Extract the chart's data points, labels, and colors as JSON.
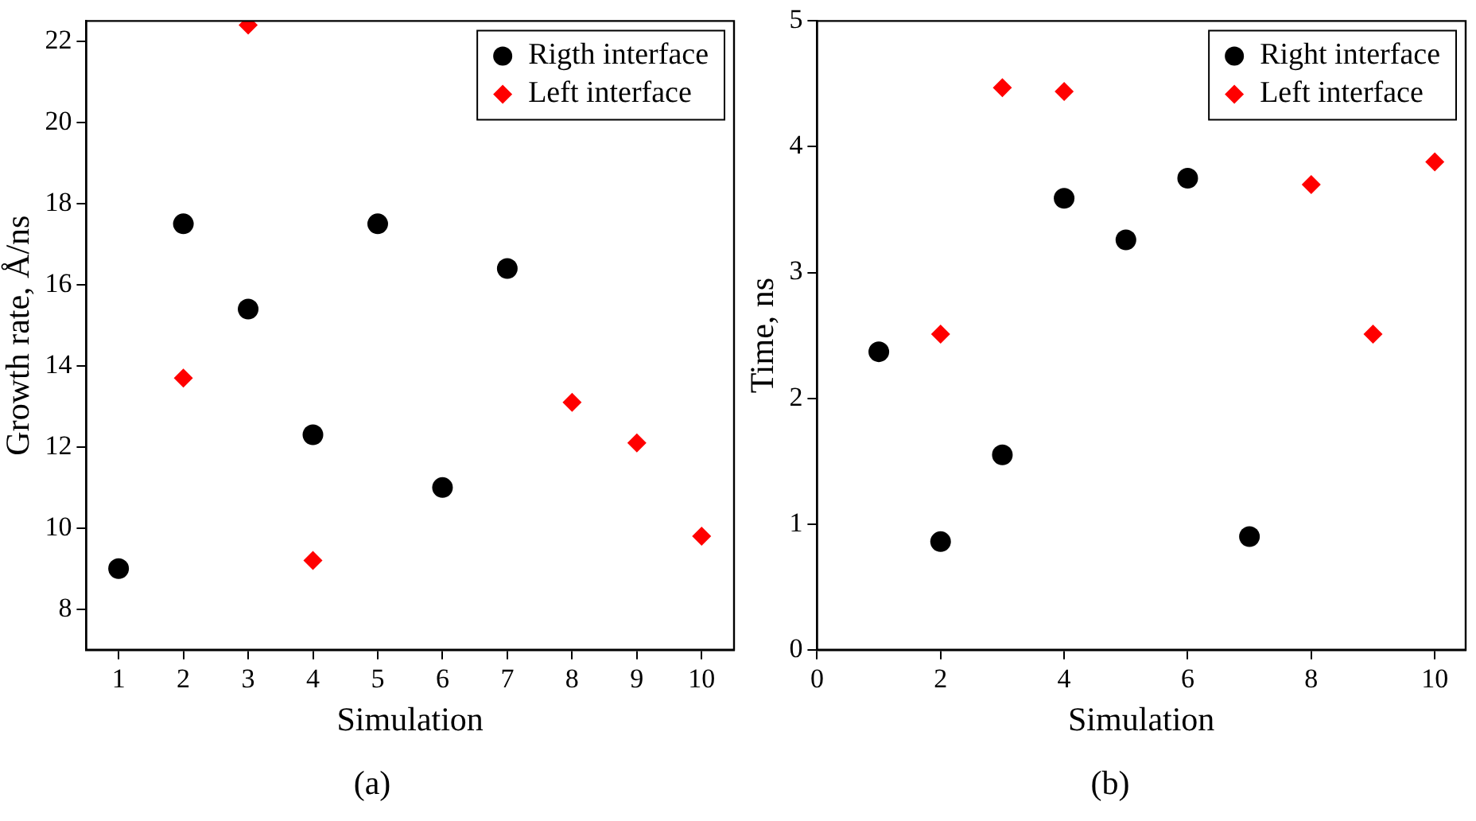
{
  "chart_data": [
    {
      "type": "scatter",
      "xlabel": "Simulation",
      "ylabel": "Growth rate, Å/ns",
      "xlim": [
        0.5,
        10.5
      ],
      "xticks": [
        1,
        2,
        3,
        4,
        5,
        6,
        7,
        8,
        9,
        10
      ],
      "ylim": [
        7,
        22.5
      ],
      "yticks": [
        8,
        10,
        12,
        14,
        16,
        18,
        20,
        22
      ],
      "legend": "top right",
      "grid": false,
      "annotations": [
        "(a)"
      ],
      "series": [
        {
          "name": "Rigth interface",
          "color": "#000000",
          "marker": "circle",
          "x": [
            1,
            2,
            3,
            4,
            5,
            6,
            7
          ],
          "values": [
            9,
            17.5,
            15.4,
            12.3,
            17.5,
            11,
            16.4
          ]
        },
        {
          "name": "Left interface",
          "color": "#ff0000",
          "marker": "diamond",
          "x": [
            2,
            3,
            4,
            8,
            9,
            10
          ],
          "values": [
            13.7,
            22.4,
            9.2,
            13.1,
            12.1,
            9.8
          ]
        }
      ]
    },
    {
      "type": "scatter",
      "xlabel": "Simulation",
      "ylabel": "Time, ns",
      "xlim": [
        0,
        10.5
      ],
      "xticks": [
        0,
        2,
        4,
        6,
        8,
        10
      ],
      "ylim": [
        0,
        5
      ],
      "yticks": [
        0,
        1,
        2,
        3,
        4,
        5
      ],
      "legend": "top right",
      "grid": false,
      "annotations": [
        "(b)"
      ],
      "series": [
        {
          "name": "Right interface",
          "color": "#000000",
          "marker": "circle",
          "x": [
            1,
            2,
            3,
            4,
            5,
            6,
            7
          ],
          "values": [
            2.37,
            0.86,
            1.55,
            3.59,
            3.26,
            3.75,
            0.9
          ]
        },
        {
          "name": "Left interface",
          "color": "#ff0000",
          "marker": "diamond",
          "x": [
            2,
            3,
            4,
            8,
            9,
            10
          ],
          "values": [
            2.51,
            4.47,
            4.44,
            3.7,
            2.51,
            3.88
          ]
        }
      ]
    }
  ]
}
